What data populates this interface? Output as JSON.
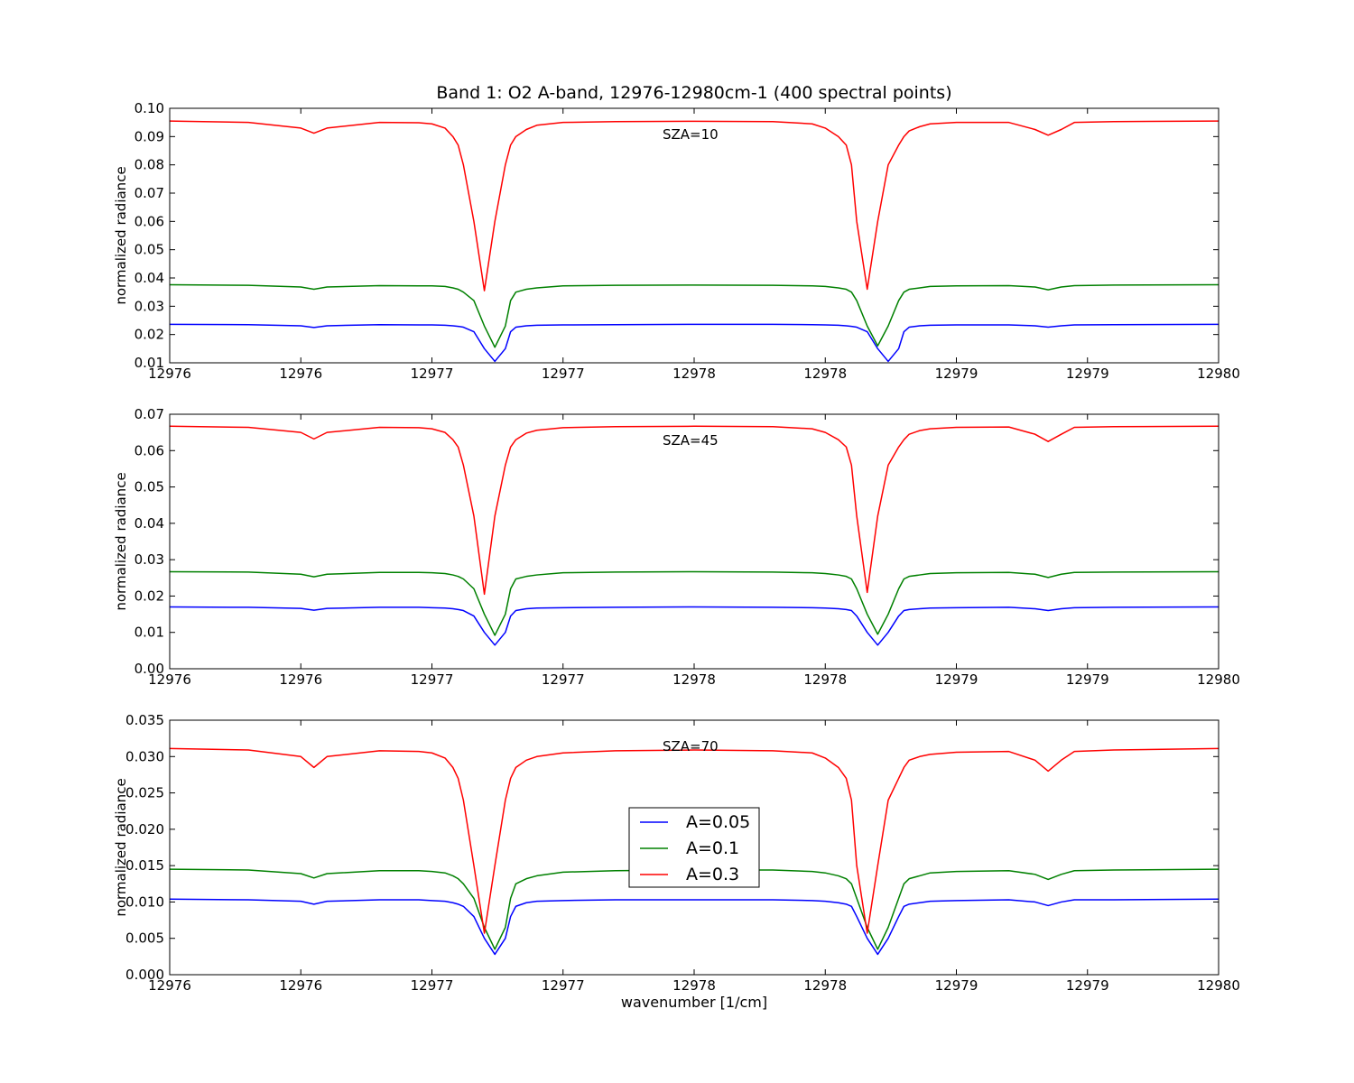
{
  "figure": {
    "title": "Band 1: O2 A-band, 12976-12980cm-1 (400 spectral points)",
    "xlabel": "wavenumber [1/cm]",
    "colors": {
      "A=0.05": "#0000ff",
      "A=0.1": "#008000",
      "A=0.3": "#ff0000"
    },
    "legend": {
      "placement": "in bottom panel, center",
      "entries": [
        "A=0.05",
        "A=0.1",
        "A=0.3"
      ]
    }
  },
  "chart_data": [
    {
      "type": "line",
      "annotation": "SZA=10",
      "ylabel": "normalized radiance",
      "xlim": [
        12976.0,
        12980.0
      ],
      "ylim": [
        0.01,
        0.1
      ],
      "xticks": [
        12976.0,
        12976.5,
        12977.0,
        12977.5,
        12978.0,
        12978.5,
        12979.0,
        12979.5,
        12980.0
      ],
      "xtick_labels": [
        "12976",
        "12976",
        "12977",
        "12977",
        "12978",
        "12978",
        "12979",
        "12979",
        "12980"
      ],
      "yticks": [
        0.01,
        0.02,
        0.03,
        0.04,
        0.05,
        0.06,
        0.07,
        0.08,
        0.09,
        0.1
      ],
      "ytick_labels": [
        "0.01",
        "0.02",
        "0.03",
        "0.04",
        "0.05",
        "0.06",
        "0.07",
        "0.08",
        "0.09",
        "0.10"
      ],
      "x": [
        12976.0,
        12976.3,
        12976.5,
        12976.55,
        12976.6,
        12976.8,
        12976.95,
        12977.0,
        12977.05,
        12977.08,
        12977.1,
        12977.12,
        12977.16,
        12977.2,
        12977.24,
        12977.28,
        12977.3,
        12977.32,
        12977.36,
        12977.4,
        12977.5,
        12977.7,
        12978.0,
        12978.3,
        12978.45,
        12978.5,
        12978.55,
        12978.58,
        12978.6,
        12978.62,
        12978.66,
        12978.7,
        12978.74,
        12978.78,
        12978.8,
        12978.82,
        12978.86,
        12978.9,
        12979.0,
        12979.2,
        12979.3,
        12979.35,
        12979.4,
        12979.45,
        12979.6,
        12980.0
      ],
      "series": [
        {
          "name": "A=0.05",
          "values": [
            0.0236,
            0.0235,
            0.0231,
            0.0225,
            0.0231,
            0.0235,
            0.0234,
            0.0234,
            0.0233,
            0.0231,
            0.0229,
            0.0226,
            0.021,
            0.015,
            0.0105,
            0.015,
            0.021,
            0.0226,
            0.0231,
            0.0233,
            0.0234,
            0.0235,
            0.0236,
            0.0236,
            0.0235,
            0.0234,
            0.0233,
            0.0231,
            0.0229,
            0.0226,
            0.021,
            0.015,
            0.0105,
            0.015,
            0.021,
            0.0226,
            0.0231,
            0.0233,
            0.0234,
            0.0234,
            0.0231,
            0.0226,
            0.0231,
            0.0234,
            0.0235,
            0.0236
          ]
        },
        {
          "name": "A=0.1",
          "values": [
            0.0376,
            0.0374,
            0.0368,
            0.036,
            0.0368,
            0.0373,
            0.0372,
            0.0372,
            0.037,
            0.0365,
            0.036,
            0.035,
            0.032,
            0.023,
            0.0155,
            0.023,
            0.032,
            0.035,
            0.036,
            0.0365,
            0.0372,
            0.0374,
            0.0375,
            0.0374,
            0.0372,
            0.037,
            0.0365,
            0.036,
            0.035,
            0.032,
            0.023,
            0.016,
            0.023,
            0.032,
            0.035,
            0.036,
            0.0365,
            0.037,
            0.0372,
            0.0373,
            0.0368,
            0.0358,
            0.0368,
            0.0373,
            0.0375,
            0.0376
          ]
        },
        {
          "name": "A=0.3",
          "values": [
            0.0955,
            0.095,
            0.093,
            0.0912,
            0.093,
            0.095,
            0.0949,
            0.0945,
            0.093,
            0.09,
            0.087,
            0.08,
            0.06,
            0.0355,
            0.06,
            0.08,
            0.087,
            0.09,
            0.0925,
            0.094,
            0.095,
            0.0953,
            0.0954,
            0.0953,
            0.0945,
            0.093,
            0.09,
            0.087,
            0.08,
            0.06,
            0.036,
            0.06,
            0.08,
            0.087,
            0.09,
            0.092,
            0.0935,
            0.0945,
            0.095,
            0.095,
            0.0925,
            0.0905,
            0.0925,
            0.095,
            0.0953,
            0.0955
          ]
        }
      ]
    },
    {
      "type": "line",
      "annotation": "SZA=45",
      "ylabel": "normalized radiance",
      "xlim": [
        12976.0,
        12980.0
      ],
      "ylim": [
        0.0,
        0.07
      ],
      "xticks": [
        12976.0,
        12976.5,
        12977.0,
        12977.5,
        12978.0,
        12978.5,
        12979.0,
        12979.5,
        12980.0
      ],
      "xtick_labels": [
        "12976",
        "12976",
        "12977",
        "12977",
        "12978",
        "12978",
        "12979",
        "12979",
        "12980"
      ],
      "yticks": [
        0.0,
        0.01,
        0.02,
        0.03,
        0.04,
        0.05,
        0.06,
        0.07
      ],
      "ytick_labels": [
        "0.00",
        "0.01",
        "0.02",
        "0.03",
        "0.04",
        "0.05",
        "0.06",
        "0.07"
      ],
      "x": [
        12976.0,
        12976.3,
        12976.5,
        12976.55,
        12976.6,
        12976.8,
        12976.95,
        12977.0,
        12977.05,
        12977.08,
        12977.1,
        12977.12,
        12977.16,
        12977.2,
        12977.24,
        12977.28,
        12977.3,
        12977.32,
        12977.36,
        12977.4,
        12977.5,
        12977.7,
        12978.0,
        12978.3,
        12978.45,
        12978.5,
        12978.55,
        12978.58,
        12978.6,
        12978.62,
        12978.66,
        12978.7,
        12978.74,
        12978.78,
        12978.8,
        12978.82,
        12978.86,
        12978.9,
        12979.0,
        12979.2,
        12979.3,
        12979.35,
        12979.4,
        12979.45,
        12979.6,
        12980.0
      ],
      "series": [
        {
          "name": "A=0.05",
          "values": [
            0.017,
            0.0169,
            0.0166,
            0.0161,
            0.0166,
            0.0169,
            0.0169,
            0.0168,
            0.0167,
            0.0165,
            0.0163,
            0.016,
            0.0145,
            0.01,
            0.0065,
            0.01,
            0.0145,
            0.016,
            0.0165,
            0.0167,
            0.0168,
            0.0169,
            0.017,
            0.0169,
            0.0168,
            0.0167,
            0.0165,
            0.0163,
            0.016,
            0.0145,
            0.01,
            0.0065,
            0.01,
            0.0145,
            0.016,
            0.0163,
            0.0165,
            0.0167,
            0.0168,
            0.0169,
            0.0165,
            0.016,
            0.0165,
            0.0168,
            0.0169,
            0.017
          ]
        },
        {
          "name": "A=0.1",
          "values": [
            0.0267,
            0.0266,
            0.026,
            0.0253,
            0.026,
            0.0265,
            0.0265,
            0.0264,
            0.0262,
            0.0258,
            0.0254,
            0.0247,
            0.022,
            0.015,
            0.0092,
            0.015,
            0.022,
            0.0247,
            0.0254,
            0.0258,
            0.0264,
            0.0266,
            0.0267,
            0.0266,
            0.0264,
            0.0262,
            0.0258,
            0.0254,
            0.0247,
            0.022,
            0.015,
            0.0095,
            0.015,
            0.022,
            0.0247,
            0.0254,
            0.0258,
            0.0262,
            0.0264,
            0.0265,
            0.026,
            0.0251,
            0.026,
            0.0265,
            0.0266,
            0.0267
          ]
        },
        {
          "name": "A=0.3",
          "values": [
            0.0667,
            0.0664,
            0.065,
            0.0632,
            0.065,
            0.0664,
            0.0663,
            0.066,
            0.065,
            0.063,
            0.061,
            0.056,
            0.042,
            0.0205,
            0.042,
            0.056,
            0.061,
            0.063,
            0.0648,
            0.0656,
            0.0663,
            0.0666,
            0.0667,
            0.0666,
            0.066,
            0.065,
            0.063,
            0.061,
            0.056,
            0.042,
            0.021,
            0.042,
            0.056,
            0.061,
            0.063,
            0.0645,
            0.0655,
            0.066,
            0.0664,
            0.0665,
            0.0645,
            0.0625,
            0.0645,
            0.0664,
            0.0666,
            0.0667
          ]
        }
      ]
    },
    {
      "type": "line",
      "annotation": "SZA=70",
      "ylabel": "normalized radiance",
      "xlabel": "wavenumber [1/cm]",
      "xlim": [
        12976.0,
        12980.0
      ],
      "ylim": [
        0.0,
        0.035
      ],
      "xticks": [
        12976.0,
        12976.5,
        12977.0,
        12977.5,
        12978.0,
        12978.5,
        12979.0,
        12979.5,
        12980.0
      ],
      "xtick_labels": [
        "12976",
        "12976",
        "12977",
        "12977",
        "12978",
        "12978",
        "12979",
        "12979",
        "12980"
      ],
      "yticks": [
        0.0,
        0.005,
        0.01,
        0.015,
        0.02,
        0.025,
        0.03,
        0.035
      ],
      "ytick_labels": [
        "0.000",
        "0.005",
        "0.010",
        "0.015",
        "0.020",
        "0.025",
        "0.030",
        "0.035"
      ],
      "x": [
        12976.0,
        12976.3,
        12976.5,
        12976.55,
        12976.6,
        12976.8,
        12976.95,
        12977.0,
        12977.05,
        12977.08,
        12977.1,
        12977.12,
        12977.16,
        12977.2,
        12977.24,
        12977.28,
        12977.3,
        12977.32,
        12977.36,
        12977.4,
        12977.5,
        12977.7,
        12978.0,
        12978.3,
        12978.45,
        12978.5,
        12978.55,
        12978.58,
        12978.6,
        12978.62,
        12978.66,
        12978.7,
        12978.74,
        12978.78,
        12978.8,
        12978.82,
        12978.86,
        12978.9,
        12979.0,
        12979.2,
        12979.3,
        12979.35,
        12979.4,
        12979.45,
        12979.6,
        12980.0
      ],
      "series": [
        {
          "name": "A=0.05",
          "values": [
            0.0104,
            0.0103,
            0.0101,
            0.0097,
            0.0101,
            0.0103,
            0.0103,
            0.0102,
            0.0101,
            0.0099,
            0.0097,
            0.0094,
            0.008,
            0.005,
            0.0028,
            0.005,
            0.008,
            0.0094,
            0.0099,
            0.0101,
            0.0102,
            0.0103,
            0.0103,
            0.0103,
            0.0102,
            0.0101,
            0.0099,
            0.0097,
            0.0094,
            0.008,
            0.005,
            0.0028,
            0.005,
            0.008,
            0.0094,
            0.0097,
            0.0099,
            0.0101,
            0.0102,
            0.0103,
            0.01,
            0.0095,
            0.01,
            0.0103,
            0.0103,
            0.0104
          ]
        },
        {
          "name": "A=0.1",
          "values": [
            0.0145,
            0.0144,
            0.0139,
            0.0133,
            0.0139,
            0.0143,
            0.0143,
            0.0142,
            0.014,
            0.0136,
            0.0132,
            0.0125,
            0.0105,
            0.0065,
            0.0035,
            0.0065,
            0.0105,
            0.0125,
            0.0132,
            0.0136,
            0.0141,
            0.0143,
            0.0144,
            0.0144,
            0.0142,
            0.014,
            0.0136,
            0.0132,
            0.0125,
            0.0105,
            0.0065,
            0.0035,
            0.0065,
            0.0105,
            0.0125,
            0.0132,
            0.0136,
            0.014,
            0.0142,
            0.0143,
            0.0138,
            0.0131,
            0.0138,
            0.0143,
            0.0144,
            0.0145
          ]
        },
        {
          "name": "A=0.3",
          "values": [
            0.0311,
            0.0309,
            0.03,
            0.0285,
            0.03,
            0.0308,
            0.0307,
            0.0305,
            0.0298,
            0.0285,
            0.027,
            0.024,
            0.015,
            0.0057,
            0.015,
            0.024,
            0.027,
            0.0285,
            0.0295,
            0.03,
            0.0305,
            0.0308,
            0.0309,
            0.0308,
            0.0305,
            0.0298,
            0.0285,
            0.027,
            0.024,
            0.015,
            0.0057,
            0.015,
            0.024,
            0.027,
            0.0285,
            0.0295,
            0.03,
            0.0303,
            0.0306,
            0.0307,
            0.0295,
            0.028,
            0.0295,
            0.0307,
            0.0309,
            0.0311
          ]
        }
      ]
    }
  ]
}
